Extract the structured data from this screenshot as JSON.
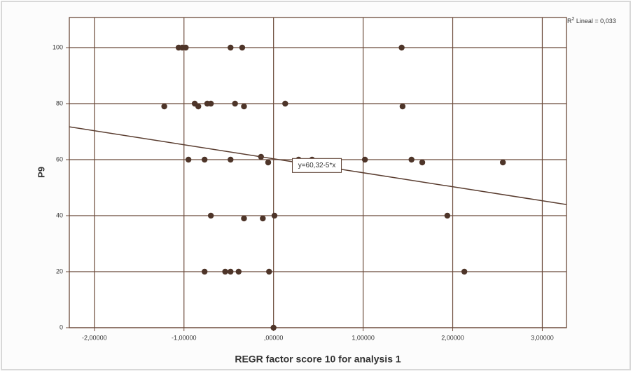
{
  "chart_data": {
    "type": "scatter",
    "x_label": "REGR factor score  10 for analysis 1",
    "y_label": "P9",
    "r2_label": {
      "prefix": "R",
      "sup": "2",
      "text": " Lineal = 0,033"
    },
    "fit": {
      "intercept": 60.32,
      "slope": -5,
      "label": "y=60,32-5*x"
    },
    "color": "#4e3529",
    "grid": true,
    "xlim": [
      -2.28,
      3.27
    ],
    "ylim": [
      0,
      110.75
    ],
    "xticks": [
      {
        "value": -2,
        "label": "-2,00000"
      },
      {
        "value": -1,
        "label": "-1,00000"
      },
      {
        "value": 0,
        "label": ",00000"
      },
      {
        "value": 1,
        "label": "1,00000"
      },
      {
        "value": 2,
        "label": "2,00000"
      },
      {
        "value": 3,
        "label": "3,00000"
      }
    ],
    "yticks": [
      0,
      20,
      40,
      60,
      80,
      100
    ],
    "x": [
      -1.06,
      -1.02,
      -0.98,
      -0.48,
      -0.35,
      1.43,
      -1.22,
      -0.88,
      -0.84,
      -0.74,
      -0.7,
      -0.43,
      -0.33,
      0.13,
      1.44,
      -0.95,
      -0.77,
      -0.48,
      -0.14,
      -0.06,
      0.28,
      0.43,
      1.02,
      1.54,
      1.66,
      2.56,
      -0.7,
      -0.33,
      -0.12,
      0.01,
      1.94,
      -0.77,
      -0.54,
      -0.48,
      -0.39,
      -0.05,
      2.13,
      0.0
    ],
    "y": [
      100,
      100,
      100,
      100,
      100,
      100,
      79,
      80,
      79,
      80,
      80,
      80,
      79,
      80,
      79,
      60,
      60,
      60,
      61,
      59,
      60,
      60,
      60,
      60,
      59,
      59,
      40,
      39,
      39,
      40,
      40,
      20,
      20,
      20,
      20,
      20,
      20,
      0
    ]
  }
}
